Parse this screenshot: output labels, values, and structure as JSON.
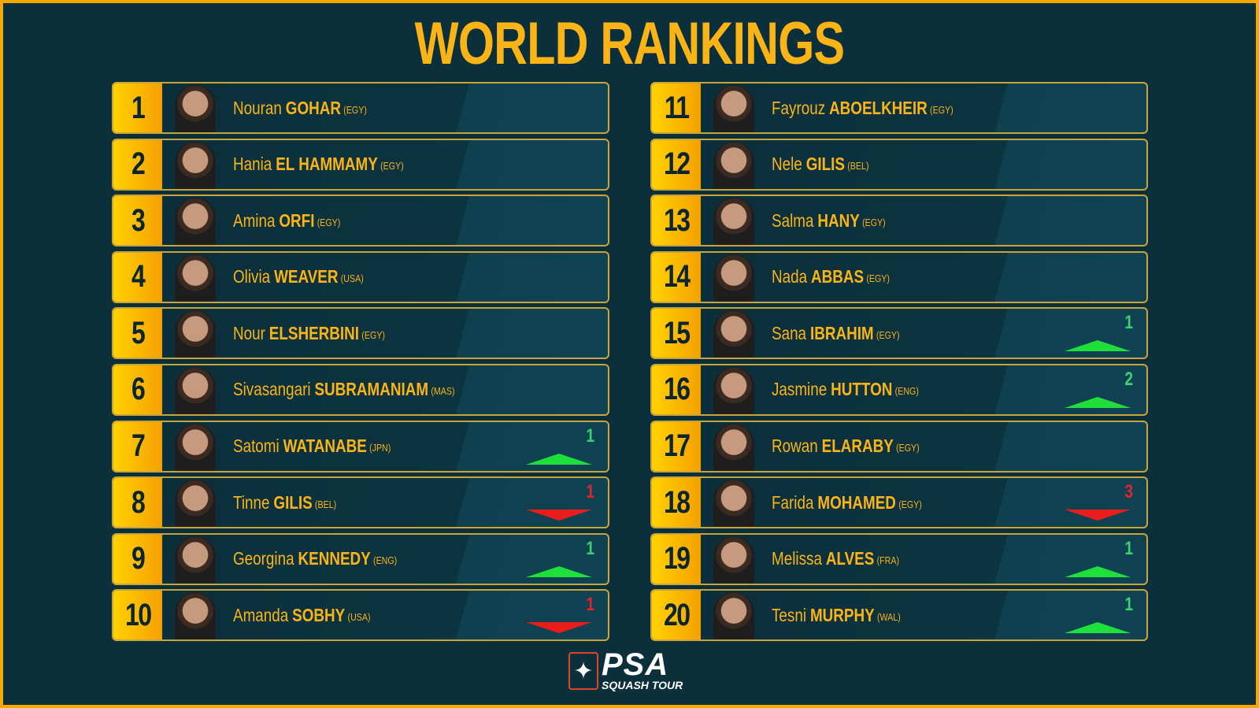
{
  "title": "WORLD RANKINGS",
  "colors": {
    "accent": "#fbb416",
    "background": "#0b2f3b",
    "up": "#1fe03a",
    "down": "#ea1c1c"
  },
  "players": [
    {
      "rank": "1",
      "first": "Nouran",
      "last": "GOHAR",
      "country": "(EGY)"
    },
    {
      "rank": "2",
      "first": "Hania",
      "last": "EL HAMMAMY",
      "country": "(EGY)"
    },
    {
      "rank": "3",
      "first": "Amina",
      "last": "ORFI",
      "country": "(EGY)"
    },
    {
      "rank": "4",
      "first": "Olivia",
      "last": "WEAVER",
      "country": "(USA)"
    },
    {
      "rank": "5",
      "first": "Nour",
      "last": "ELSHERBINI",
      "country": "(EGY)"
    },
    {
      "rank": "6",
      "first": "Sivasangari",
      "last": "SUBRAMANIAM",
      "country": "(MAS)"
    },
    {
      "rank": "7",
      "first": "Satomi",
      "last": "WATANABE",
      "country": "(JPN)",
      "change": "1",
      "dir": "up"
    },
    {
      "rank": "8",
      "first": "Tinne",
      "last": "GILIS",
      "country": "(BEL)",
      "change": "1",
      "dir": "down"
    },
    {
      "rank": "9",
      "first": "Georgina",
      "last": "KENNEDY",
      "country": "(ENG)",
      "change": "1",
      "dir": "up"
    },
    {
      "rank": "10",
      "first": "Amanda",
      "last": "SOBHY",
      "country": "(USA)",
      "change": "1",
      "dir": "down"
    },
    {
      "rank": "11",
      "first": "Fayrouz",
      "last": "ABOELKHEIR",
      "country": "(EGY)"
    },
    {
      "rank": "12",
      "first": "Nele",
      "last": "GILIS",
      "country": "(BEL)"
    },
    {
      "rank": "13",
      "first": "Salma",
      "last": "HANY",
      "country": "(EGY)"
    },
    {
      "rank": "14",
      "first": "Nada",
      "last": "ABBAS",
      "country": "(EGY)"
    },
    {
      "rank": "15",
      "first": "Sana",
      "last": "IBRAHIM",
      "country": "(EGY)",
      "change": "1",
      "dir": "up"
    },
    {
      "rank": "16",
      "first": "Jasmine",
      "last": "HUTTON",
      "country": "(ENG)",
      "change": "2",
      "dir": "up"
    },
    {
      "rank": "17",
      "first": "Rowan",
      "last": "ELARABY",
      "country": "(EGY)"
    },
    {
      "rank": "18",
      "first": "Farida",
      "last": "MOHAMED",
      "country": "(EGY)",
      "change": "3",
      "dir": "down"
    },
    {
      "rank": "19",
      "first": "Melissa",
      "last": "ALVES",
      "country": "(FRA)",
      "change": "1",
      "dir": "up"
    },
    {
      "rank": "20",
      "first": "Tesni",
      "last": "MURPHY",
      "country": "(WAL)",
      "change": "1",
      "dir": "up"
    }
  ],
  "logo": {
    "name": "PSA",
    "subtitle": "SQUASH TOUR"
  }
}
